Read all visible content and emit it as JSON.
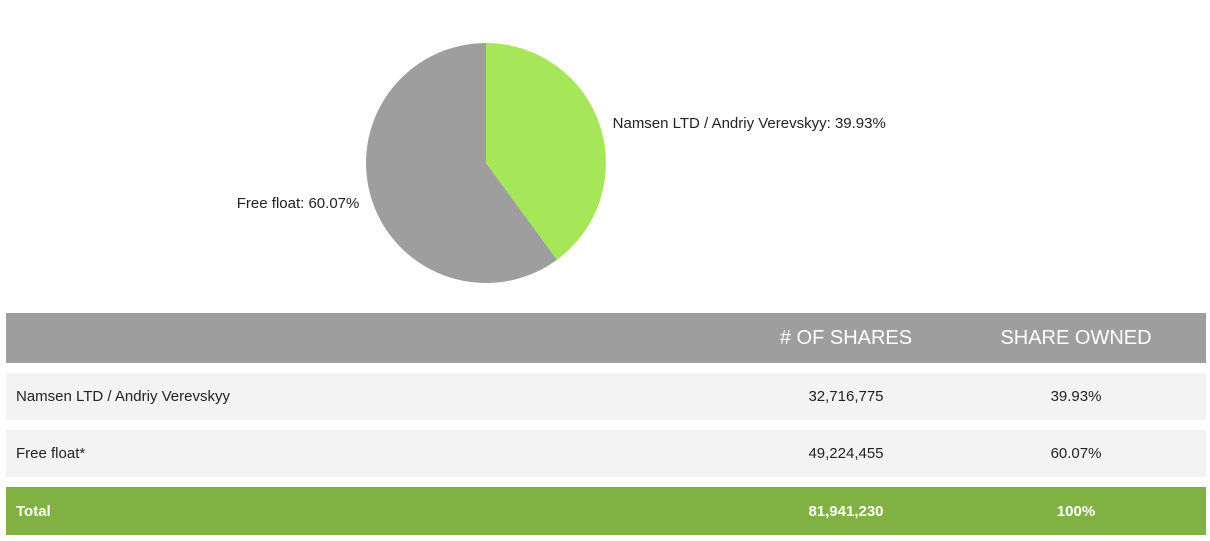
{
  "chart_data": {
    "type": "pie",
    "slices": [
      {
        "label": "Namsen LTD / Andriy Verevskyy",
        "value": 39.93,
        "display": "Namsen LTD / Andriy Verevskyy: 39.93%",
        "color": "#a6e75a"
      },
      {
        "label": "Free float",
        "value": 60.07,
        "display": "Free float: 60.07%",
        "color": "#9e9e9e"
      }
    ]
  },
  "table": {
    "headers": {
      "name": "",
      "shares": "# OF SHARES",
      "owned": "SHARE OWNED"
    },
    "rows": [
      {
        "name": "Namsen LTD / Andriy Verevskyy",
        "shares": "32,716,775",
        "owned": "39.93%"
      },
      {
        "name": "Free float*",
        "shares": "49,224,455",
        "owned": "60.07%"
      }
    ],
    "total": {
      "name": "Total",
      "shares": "81,941,230",
      "owned": "100%"
    }
  },
  "colors": {
    "header_bg": "#9e9e9e",
    "row_bg": "#f3f3f3",
    "total_bg": "#80b142"
  }
}
